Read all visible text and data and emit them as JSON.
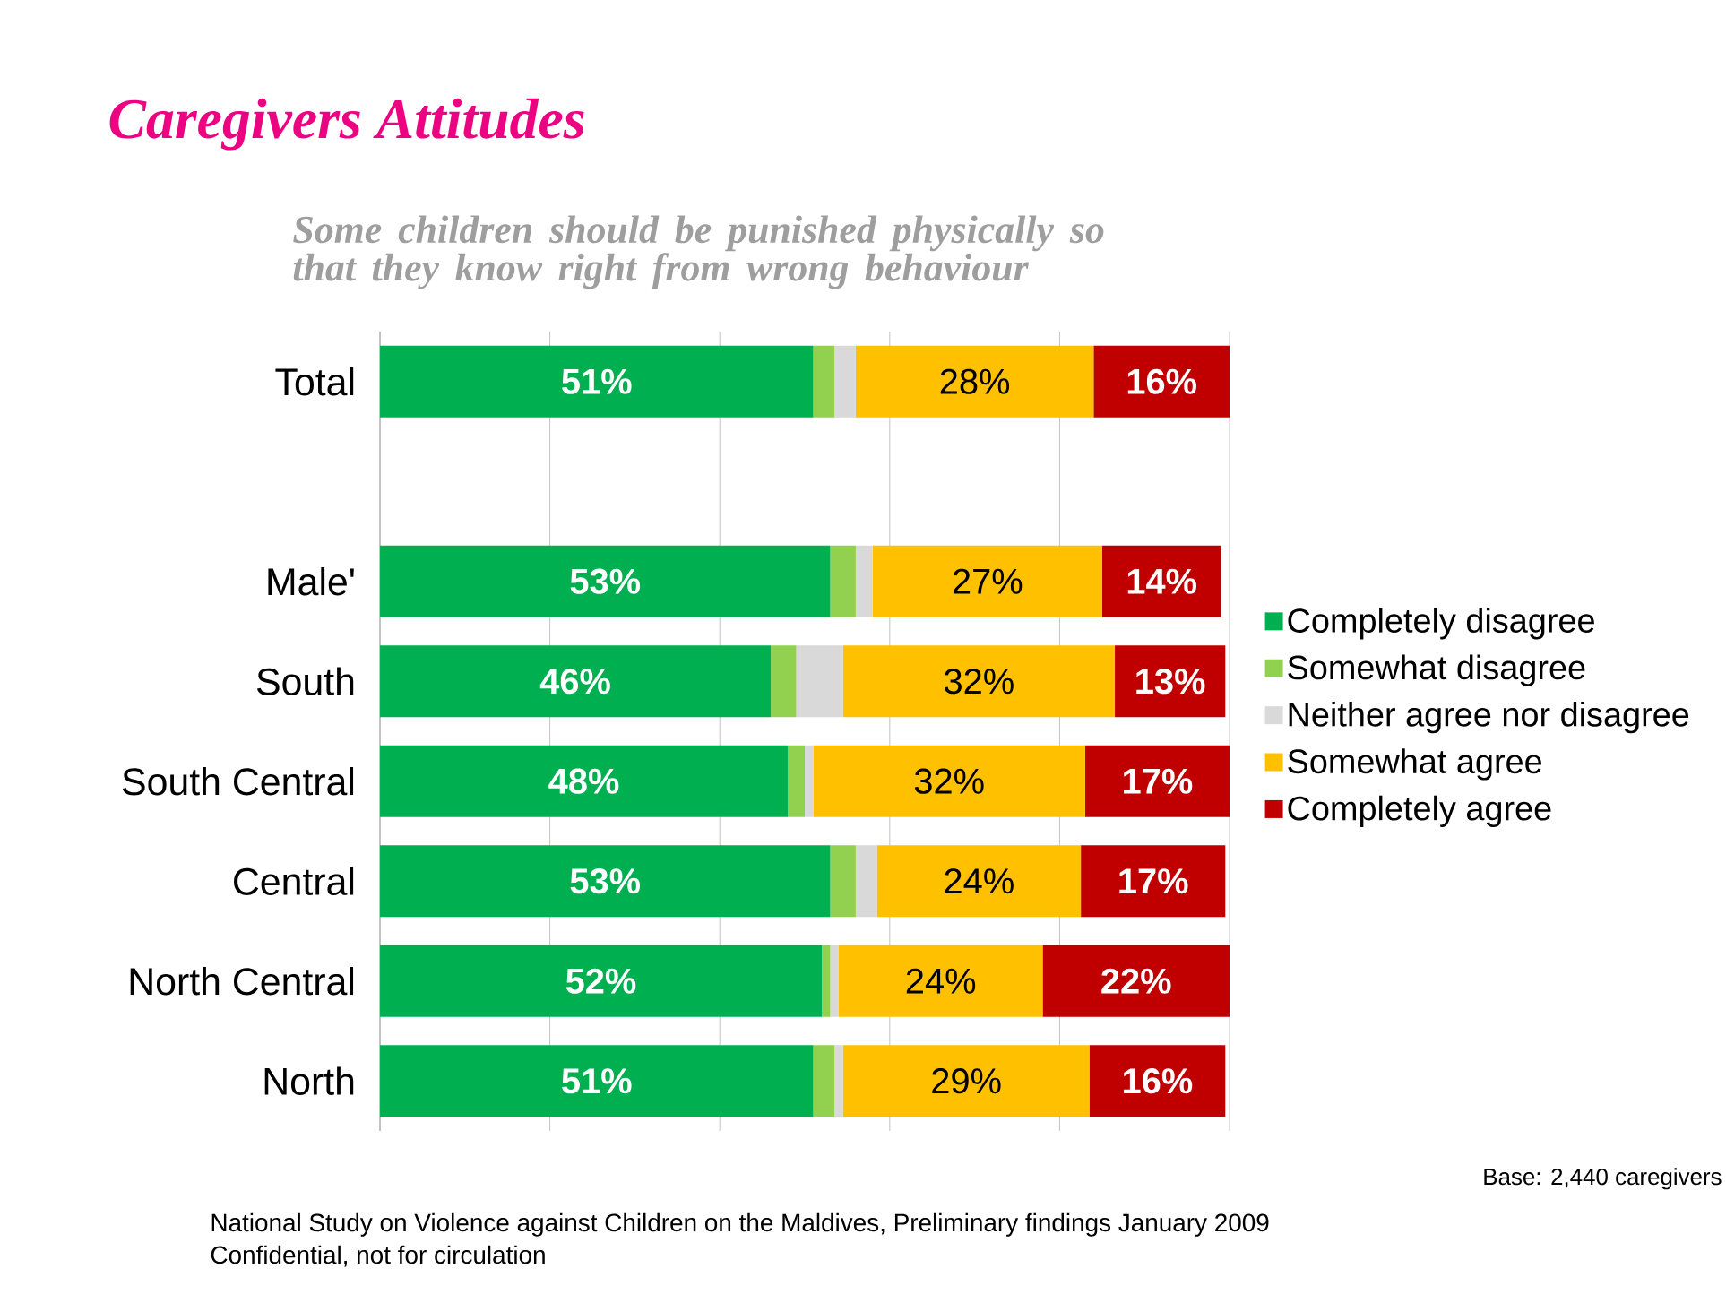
{
  "chart_data": {
    "type": "bar",
    "orientation": "horizontal",
    "stacked": true,
    "title": "Caregivers Attitudes",
    "subtitle": "Some children should be punished physically so that they know right from wrong behaviour",
    "categories": [
      "Total",
      null,
      "Male'",
      "South",
      "South Central",
      "Central",
      "North Central",
      "North"
    ],
    "series": [
      {
        "name": "Completely disagree",
        "color": "#00b050",
        "values": [
          51,
          null,
          53,
          46,
          48,
          53,
          52,
          51
        ],
        "value_labels": [
          "51%",
          null,
          "53%",
          "46%",
          "48%",
          "53%",
          "52%",
          "51%"
        ]
      },
      {
        "name": "Somewhat disagree",
        "color": "#92d050",
        "values": [
          2.5,
          null,
          3,
          3,
          2,
          3,
          1,
          2.5
        ]
      },
      {
        "name": "Neither agree nor disagree",
        "color": "#d9d9d9",
        "values": [
          2.5,
          null,
          2,
          5.5,
          1,
          2.5,
          1,
          1
        ]
      },
      {
        "name": "Somewhat agree",
        "color": "#ffc000",
        "values": [
          28,
          null,
          27,
          32,
          32,
          24,
          24,
          29
        ],
        "value_labels": [
          "28%",
          null,
          "27%",
          "32%",
          "32%",
          "24%",
          "24%",
          "29%"
        ]
      },
      {
        "name": "Completely agree",
        "color": "#c00000",
        "values": [
          16,
          null,
          14,
          13,
          17,
          17,
          22,
          16
        ],
        "value_labels": [
          "16%",
          null,
          "14%",
          "13%",
          "17%",
          "17%",
          "22%",
          "16%"
        ]
      }
    ],
    "xlim": [
      0,
      100
    ],
    "xticks": [
      {
        "value": 0,
        "label": null
      },
      {
        "value": 20,
        "label": null
      },
      {
        "value": 40,
        "label": null
      },
      {
        "value": 60,
        "label": null
      },
      {
        "value": 80,
        "label": null
      },
      {
        "value": 100,
        "label": null
      }
    ],
    "tick_labels": "y",
    "grid": "x",
    "legend": "right",
    "annotations": [
      "Base: 2,440 caregivers",
      "National Study on Violence against Children on the Maldives, Preliminary findings January 2009",
      "Confidential, not for circulation"
    ]
  }
}
